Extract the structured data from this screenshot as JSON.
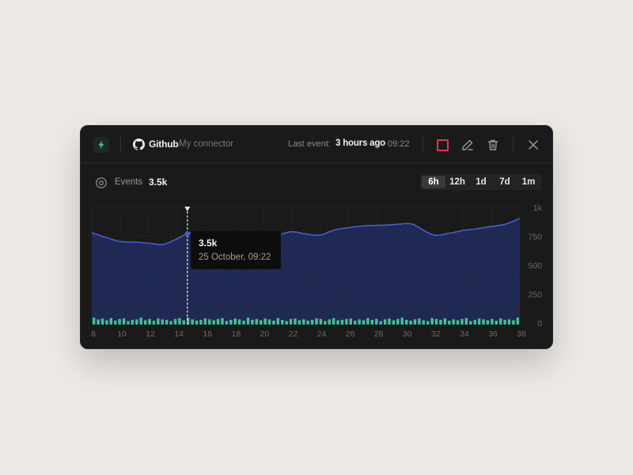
{
  "header": {
    "title": "Github",
    "subtitle": "My connector",
    "last_event_label": "Last event:",
    "last_event_value": "3 hours ago",
    "last_event_time": "09:22",
    "icons": [
      "bolt-icon",
      "github-icon",
      "stop-icon",
      "edit-icon",
      "trash-icon",
      "close-icon"
    ]
  },
  "stats": {
    "label": "Events",
    "value": "3.5k"
  },
  "range_options": [
    "6h",
    "12h",
    "1d",
    "7d",
    "1m"
  ],
  "range_selected": "6h",
  "tooltip": {
    "value": "3.5k",
    "date": "25 October, 09:22"
  },
  "colors": {
    "accent_blue": "#4a5bd8",
    "area_fill": "#1e2850",
    "bar_green": "#3ec48a",
    "stop_red": "#e6344e",
    "background": "#1a1a1a"
  },
  "chart_data": {
    "type": "area",
    "x_ticks": [
      "8",
      "10",
      "12",
      "14",
      "16",
      "18",
      "20",
      "22",
      "24",
      "26",
      "28",
      "30",
      "32",
      "34",
      "36",
      "38"
    ],
    "y_ticks": [
      "0",
      "250",
      "500",
      "750",
      "1k"
    ],
    "ylim": [
      0,
      1000
    ],
    "xlim": [
      8,
      38
    ],
    "grid": true,
    "series": [
      {
        "x": [
          8,
          9,
          10,
          11,
          12,
          13,
          14,
          14.7,
          15,
          16,
          17,
          18,
          19,
          20,
          21,
          22,
          23,
          24,
          25,
          26,
          27,
          28,
          29,
          30,
          30.5,
          31,
          32,
          33,
          34,
          35,
          36,
          37,
          38
        ],
        "values": [
          780,
          740,
          705,
          700,
          690,
          680,
          730,
          775,
          780,
          790,
          770,
          760,
          755,
          750,
          760,
          790,
          770,
          760,
          805,
          825,
          840,
          845,
          850,
          860,
          855,
          820,
          760,
          775,
          800,
          815,
          835,
          855,
          905
        ]
      },
      {
        "x": [
          8,
          8.3,
          8.6,
          8.9,
          9.2,
          9.5,
          9.8,
          10.1,
          10.4,
          10.7,
          11,
          11.3,
          11.6,
          11.9,
          12.2,
          12.5,
          12.8,
          13.1,
          13.4,
          13.7,
          14,
          14.3,
          14.6,
          14.9,
          15.2,
          15.5,
          15.8,
          16.1,
          16.4,
          16.7,
          17,
          17.3,
          17.6,
          17.9,
          18.2,
          18.5,
          18.8,
          19.1,
          19.4,
          19.7,
          20,
          20.3,
          20.6,
          20.9,
          21.2,
          21.5,
          21.8,
          22.1,
          22.4,
          22.7,
          23,
          23.3,
          23.6,
          23.9,
          24.2,
          24.5,
          24.8,
          25.1,
          25.4,
          25.7,
          26,
          26.3,
          26.6,
          26.9,
          27.2,
          27.5,
          27.8,
          28.1,
          28.4,
          28.7,
          29,
          29.3,
          29.6,
          29.9,
          30.2,
          30.5,
          30.8,
          31.1,
          31.4,
          31.7,
          32,
          32.3,
          32.6,
          32.9,
          33.2,
          33.5,
          33.8,
          34.1,
          34.4,
          34.7,
          35,
          35.3,
          35.6,
          35.9,
          36.2,
          36.5,
          36.8,
          37.1,
          37.4,
          37.7
        ],
        "values": [
          80,
          60,
          70,
          50,
          75,
          45,
          65,
          70,
          40,
          55,
          60,
          80,
          50,
          65,
          45,
          70,
          60,
          55,
          40,
          65,
          75,
          50,
          80,
          60,
          45,
          55,
          70,
          60,
          50,
          65,
          75,
          40,
          55,
          70,
          60,
          45,
          80,
          55,
          65,
          50,
          70,
          60,
          45,
          75,
          55,
          40,
          65,
          70,
          50,
          60,
          45,
          55,
          70,
          65,
          40,
          60,
          75,
          50,
          55,
          65,
          70,
          45,
          60,
          50,
          75,
          55,
          65,
          40,
          60,
          70,
          50,
          65,
          80,
          55,
          45,
          60,
          70,
          50,
          40,
          75,
          65,
          55,
          70,
          45,
          60,
          50,
          65,
          75,
          40,
          55,
          70,
          60,
          50,
          65,
          45,
          70,
          55,
          60,
          50,
          80
        ]
      }
    ],
    "highlight_x": 14.7
  }
}
